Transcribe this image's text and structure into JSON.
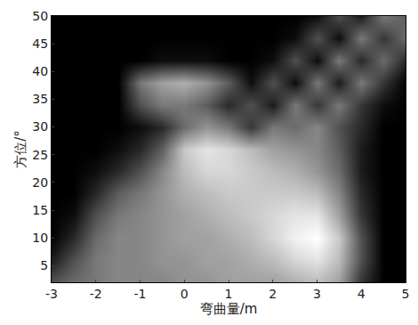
{
  "chart_data": {
    "type": "heatmap",
    "x_label": "弯曲量/m",
    "y_label": "方位/°",
    "x": [
      -3,
      -2.5,
      -2,
      -1.5,
      -1,
      -0.5,
      0,
      0.5,
      1,
      1.5,
      2,
      2.5,
      3,
      3.5,
      4,
      4.5,
      5
    ],
    "y": [
      2,
      6,
      10,
      14,
      18,
      22,
      26,
      30,
      34,
      38,
      42,
      46,
      50
    ],
    "cells": [
      [
        0.3,
        0.4,
        0.45,
        0.5,
        0.5,
        0.5,
        0.55,
        0.55,
        0.6,
        0.6,
        0.6,
        0.65,
        0.7,
        0.6,
        0.2,
        0,
        0
      ],
      [
        0.1,
        0.3,
        0.45,
        0.5,
        0.5,
        0.55,
        0.55,
        0.6,
        0.6,
        0.65,
        0.7,
        0.8,
        0.85,
        0.7,
        0.3,
        0,
        0
      ],
      [
        0,
        0.15,
        0.4,
        0.5,
        0.5,
        0.55,
        0.6,
        0.6,
        0.65,
        0.7,
        0.8,
        0.9,
        0.95,
        0.75,
        0.3,
        0,
        0
      ],
      [
        0,
        0.05,
        0.3,
        0.45,
        0.5,
        0.55,
        0.6,
        0.65,
        0.7,
        0.75,
        0.8,
        0.85,
        0.85,
        0.6,
        0.2,
        0,
        0
      ],
      [
        0,
        0,
        0.15,
        0.35,
        0.45,
        0.55,
        0.65,
        0.7,
        0.75,
        0.75,
        0.75,
        0.75,
        0.7,
        0.5,
        0.15,
        0,
        0
      ],
      [
        0,
        0,
        0.05,
        0.15,
        0.3,
        0.5,
        0.7,
        0.8,
        0.8,
        0.75,
        0.7,
        0.65,
        0.55,
        0.4,
        0.1,
        0,
        0
      ],
      [
        0,
        0,
        0,
        0.05,
        0.15,
        0.35,
        0.75,
        0.85,
        0.8,
        0.7,
        0.6,
        0.55,
        0.5,
        0.35,
        0.1,
        0,
        0
      ],
      [
        0,
        0,
        0,
        0,
        0.05,
        0.15,
        0.4,
        0.55,
        0.45,
        0.2,
        0.45,
        0.4,
        0.5,
        0.3,
        0.15,
        0,
        0
      ],
      [
        0,
        0,
        0,
        0,
        0.3,
        0.45,
        0.45,
        0.35,
        0.15,
        0.3,
        0.1,
        0.45,
        0.2,
        0.45,
        0.2,
        0.05,
        0
      ],
      [
        0,
        0,
        0,
        0,
        0.45,
        0.6,
        0.65,
        0.55,
        0.35,
        0.05,
        0.3,
        0.05,
        0.45,
        0.1,
        0.45,
        0.2,
        0
      ],
      [
        0,
        0,
        0,
        0,
        0,
        0.05,
        0.05,
        0.05,
        0,
        0,
        0.05,
        0.3,
        0.05,
        0.45,
        0.15,
        0.4,
        0.15
      ],
      [
        0,
        0,
        0,
        0,
        0,
        0,
        0,
        0,
        0,
        0,
        0,
        0.05,
        0.3,
        0.05,
        0.45,
        0.2,
        0.4
      ],
      [
        0,
        0,
        0,
        0,
        0,
        0,
        0,
        0,
        0,
        0,
        0,
        0,
        0.05,
        0.3,
        0.1,
        0.45,
        0.35
      ]
    ],
    "xlim": [
      -3,
      5
    ],
    "ylim": [
      2,
      50
    ],
    "xticks": [
      -3,
      -2,
      -1,
      0,
      1,
      2,
      3,
      4,
      5
    ],
    "yticks": [
      5,
      10,
      15,
      20,
      25,
      30,
      35,
      40,
      45,
      50
    ],
    "grid": false
  }
}
